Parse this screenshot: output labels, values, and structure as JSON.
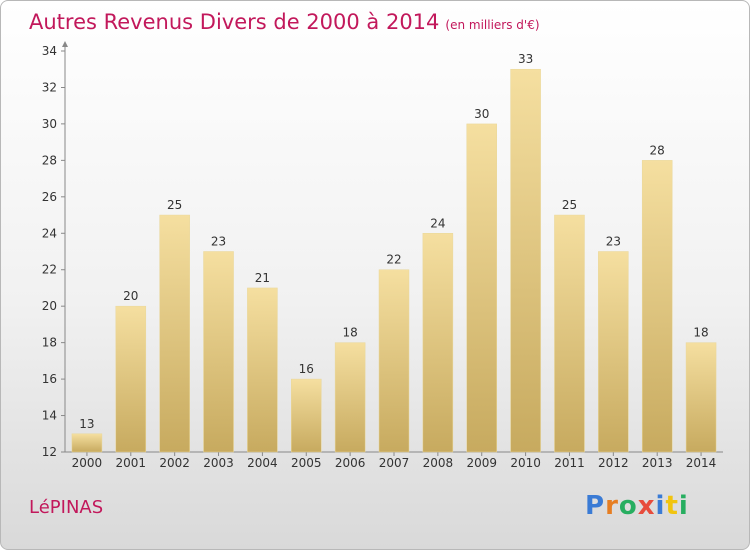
{
  "header": {
    "title": "Autres Revenus Divers de 2000 à 2014",
    "unit": "(en milliers d'€)"
  },
  "footer": {
    "commune": "LéPINAS",
    "logo_letters": [
      {
        "ch": "P",
        "color": "#3a7bd5"
      },
      {
        "ch": "r",
        "color": "#e67e22"
      },
      {
        "ch": "o",
        "color": "#27ae60"
      },
      {
        "ch": "x",
        "color": "#e74c3c"
      },
      {
        "ch": "i",
        "color": "#3a7bd5"
      },
      {
        "ch": "t",
        "color": "#f1c40f"
      },
      {
        "ch": "i",
        "color": "#27ae60"
      }
    ]
  },
  "chart_data": {
    "type": "bar",
    "title": "Autres Revenus Divers de 2000 à 2014",
    "categories": [
      "2000",
      "2001",
      "2002",
      "2003",
      "2004",
      "2005",
      "2006",
      "2007",
      "2008",
      "2009",
      "2010",
      "2011",
      "2012",
      "2013",
      "2014"
    ],
    "values": [
      13,
      20,
      25,
      23,
      21,
      16,
      18,
      22,
      24,
      30,
      33,
      25,
      23,
      28,
      18
    ],
    "ylim": [
      12,
      34
    ],
    "yticks": [
      12,
      14,
      16,
      18,
      20,
      22,
      24,
      26,
      28,
      30,
      32,
      34
    ],
    "grid": false,
    "bar_color_top": "#f5dfa0",
    "bar_color_bottom": "#c7aa5f"
  }
}
